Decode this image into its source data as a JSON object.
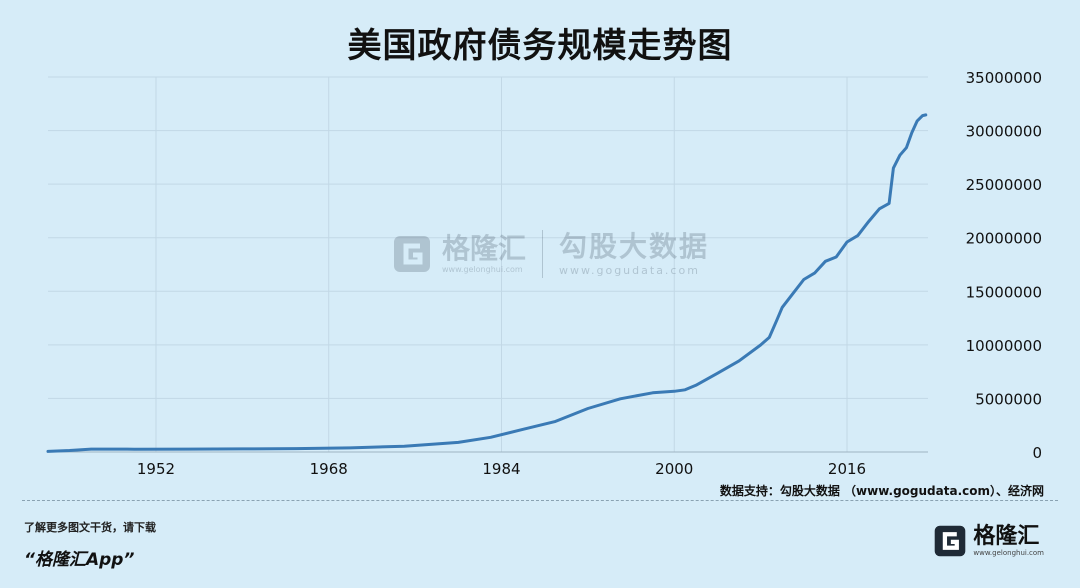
{
  "header": {
    "title": "美国政府债务规模走势图"
  },
  "footer": {
    "source": "数据支持：勾股大数据 （www.gogudata.com）、经济网",
    "promo": "了解更多图文干货，请下载",
    "app_name": "“格隆汇App”",
    "logo_name": "格隆汇",
    "logo_site": "www.gelonghui.com"
  },
  "watermark": {
    "brand": "格隆汇",
    "brand_site": "www.gelonghui.com",
    "data_brand": "勾股大数据",
    "data_site": "www.gogudata.com"
  },
  "colors": {
    "background": "#d6ecf8",
    "line": "#3a7ab5",
    "grid": "#c2d8e6"
  },
  "icons": {
    "logo": "g-logo-icon",
    "watermark": "g-logo-icon"
  },
  "chart_data": {
    "type": "line",
    "title": "美国政府债务规模走势图",
    "xlabel": "",
    "ylabel": "",
    "xlim": [
      1942,
      2023.5
    ],
    "ylim": [
      0,
      35000000
    ],
    "x_ticks": [
      1952,
      1968,
      1984,
      2000,
      2016
    ],
    "y_ticks": [
      0,
      5000000,
      10000000,
      15000000,
      20000000,
      25000000,
      30000000,
      35000000
    ],
    "y_axis_side": "right",
    "grid": true,
    "legend": "none",
    "series": [
      {
        "x": [
          1942,
          1944,
          1946,
          1950,
          1955,
          1960,
          1965,
          1970,
          1975,
          1980,
          1983,
          1986,
          1989,
          1992,
          1995,
          1998,
          2000,
          2001,
          2002,
          2004,
          2006,
          2008,
          2008.8,
          2009.5,
          2010,
          2011,
          2012,
          2013,
          2014,
          2015,
          2016,
          2017,
          2018,
          2019,
          2019.9,
          2020.3,
          2020.9,
          2021.5,
          2022,
          2022.5,
          2023,
          2023.3
        ],
        "y": [
          60000,
          140000,
          270000,
          260000,
          270000,
          290000,
          320000,
          380000,
          540000,
          900000,
          1370000,
          2120000,
          2860000,
          4060000,
          4970000,
          5530000,
          5670000,
          5810000,
          6230000,
          7350000,
          8500000,
          9990000,
          10700000,
          12300000,
          13500000,
          14800000,
          16100000,
          16700000,
          17800000,
          18200000,
          19600000,
          20200000,
          21500000,
          22700000,
          23200000,
          26500000,
          27700000,
          28400000,
          29800000,
          30900000,
          31400000,
          31460000
        ]
      }
    ]
  }
}
